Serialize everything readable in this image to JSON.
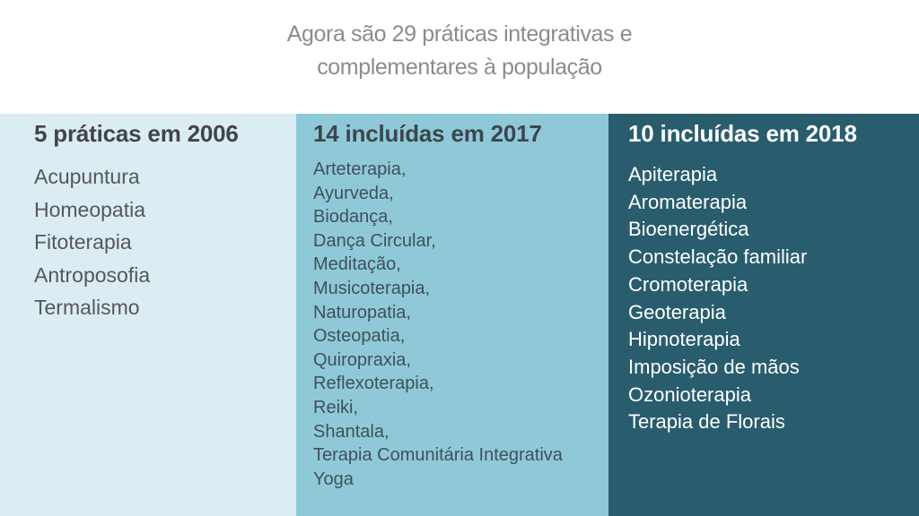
{
  "slide": {
    "title_lines": [
      "Agora são 29 práticas integrativas e",
      "complementares à população"
    ],
    "columns": [
      {
        "heading": "5 práticas em 2006",
        "items": [
          "Acupuntura",
          "Homeopatia",
          "Fitoterapia",
          "Antroposofia",
          "Termalismo"
        ]
      },
      {
        "heading": "14 incluídas em 2017",
        "items": [
          "Arteterapia,",
          "Ayurveda,",
          "Biodança,",
          "Dança Circular,",
          "Meditação,",
          "Musicoterapia,",
          "Naturopatia,",
          "Osteopatia,",
          "Quiropraxia,",
          "Reflexoterapia,",
          "Reiki,",
          "Shantala,",
          "Terapia Comunitária Integrativa",
          "Yoga"
        ]
      },
      {
        "heading": "10 incluídas em 2018",
        "items": [
          "Apiterapia",
          "Aromaterapia",
          "Bioenergética",
          "Constelação familiar",
          "Cromoterapia",
          "Geoterapia",
          "Hipnoterapia",
          "Imposição de mãos",
          "Ozonioterapia",
          "Terapia de Florais"
        ]
      }
    ],
    "colors": {
      "header_bg": "#ffffff",
      "title_text": "#8c8c8c",
      "col1_bg": "#dcecf3",
      "col1_heading": "#414549",
      "col1_text": "#54585b",
      "col2_bg": "#8fc9d8",
      "col2_heading": "#3c464d",
      "col2_text": "#41505a",
      "col3_bg": "#295d6d",
      "col3_heading": "#ffffff",
      "col3_text": "#ffffff"
    }
  }
}
